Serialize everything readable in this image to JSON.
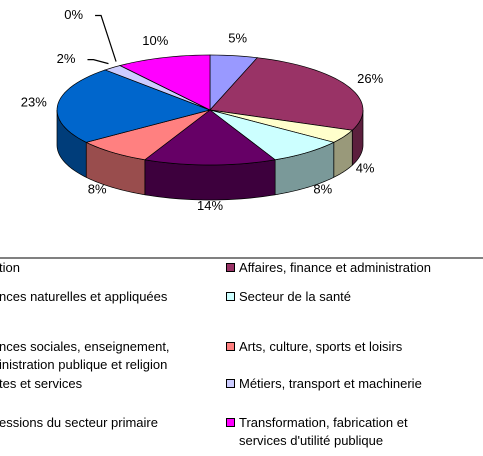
{
  "chart_data": {
    "type": "pie3d",
    "series": [
      {
        "name": "tion",
        "color": "#9999FF",
        "value": 5
      },
      {
        "name": "Affaires, finance et administration",
        "color": "#993366",
        "value": 26
      },
      {
        "name": "nces naturelles et appliquées",
        "color": "#FFFFCC",
        "value": 4
      },
      {
        "name": "Secteur de la santé",
        "color": "#CCFFFF",
        "value": 8
      },
      {
        "name": "nces sociales, enseignement,\ninistration publique et religion",
        "color": "#660066",
        "value": 14
      },
      {
        "name": "Arts, culture, sports et loisirs",
        "color": "#FF8080",
        "value": 8
      },
      {
        "name": "tes et services",
        "color": "#0066CC",
        "value": 23
      },
      {
        "name": "Métiers, transport et machinerie",
        "color": "#CCCCFF",
        "value": 2
      },
      {
        "name": "essions du secteur primaire",
        "color": "#000080",
        "value": 0
      },
      {
        "name": "Transformation, fabrication et\nservices d'utilité publique",
        "color": "#FF00FF",
        "value": 10
      }
    ],
    "value_labels": [
      "5%",
      "26%",
      "4%",
      "8%",
      "14%",
      "8%",
      "23%",
      "2%",
      "0%",
      "10%"
    ]
  }
}
